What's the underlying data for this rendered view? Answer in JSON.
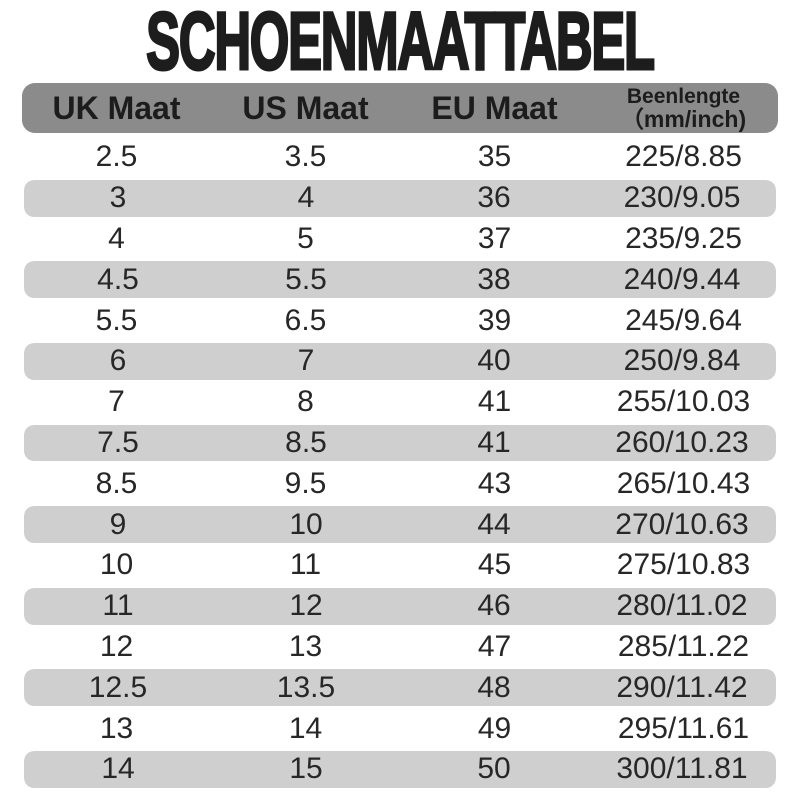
{
  "title": "SCHOENMAATTABEL",
  "colors": {
    "background": "#ffffff",
    "header_bg": "#8b8b8b",
    "alt_row_bg": "#cfcfcf",
    "text": "#1d1d1d"
  },
  "chart_data": {
    "type": "table",
    "title": "SCHOENMAATTABEL",
    "columns": [
      {
        "label": "UK Maat"
      },
      {
        "label": "US Maat"
      },
      {
        "label": "EU Maat"
      },
      {
        "label": "Beenlengte",
        "sublabel": "（mm/inch)"
      }
    ],
    "rows": [
      [
        "2.5",
        "3.5",
        "35",
        "225/8.85"
      ],
      [
        "3",
        "4",
        "36",
        "230/9.05"
      ],
      [
        "4",
        "5",
        "37",
        "235/9.25"
      ],
      [
        "4.5",
        "5.5",
        "38",
        "240/9.44"
      ],
      [
        "5.5",
        "6.5",
        "39",
        "245/9.64"
      ],
      [
        "6",
        "7",
        "40",
        "250/9.84"
      ],
      [
        "7",
        "8",
        "41",
        "255/10.03"
      ],
      [
        "7.5",
        "8.5",
        "41",
        "260/10.23"
      ],
      [
        "8.5",
        "9.5",
        "43",
        "265/10.43"
      ],
      [
        "9",
        "10",
        "44",
        "270/10.63"
      ],
      [
        "10",
        "11",
        "45",
        "275/10.83"
      ],
      [
        "11",
        "12",
        "46",
        "280/11.02"
      ],
      [
        "12",
        "13",
        "47",
        "285/11.22"
      ],
      [
        "12.5",
        "13.5",
        "48",
        "290/11.42"
      ],
      [
        "13",
        "14",
        "49",
        "295/11.61"
      ],
      [
        "14",
        "15",
        "50",
        "300/11.81"
      ]
    ]
  }
}
